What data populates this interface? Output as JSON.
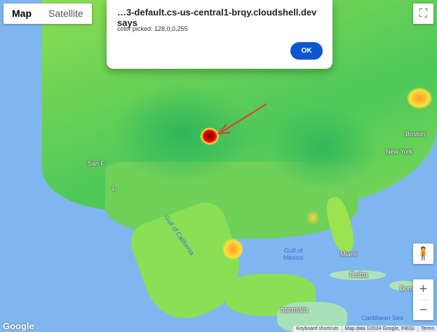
{
  "map": {
    "type_buttons": [
      "Map",
      "Satellite"
    ],
    "active_type": "Map",
    "labels": {
      "san_francisco": "San F",
      "los_angeles": "L",
      "boston": "Boston",
      "new_york": "New York",
      "gulf_of_california": "Gulf of California",
      "gulf_of_mexico": "Gulf of\nMexico",
      "miami": "Miami",
      "cuba": "Cuba",
      "dominican": "Domin",
      "caribbean": "Caribbean Sea",
      "guatemala": "atemala"
    },
    "zoom_in": "+",
    "zoom_out": "−",
    "logo": "Google",
    "footer": {
      "shortcuts": "Keyboard shortcuts",
      "map_data": "Map data ©2024 Google, INEGI",
      "terms": "Terms"
    },
    "icons": [
      "fullscreen-icon",
      "pegman-icon",
      "arrow-annotation"
    ],
    "colors": {
      "land": "#7ed957",
      "water": "#7fb6f0",
      "hotspot": "#cc0000",
      "arrow": "#e53935"
    }
  },
  "dialog": {
    "title": "…3-default.cs-us-central1-brqy.cloudshell.dev says",
    "message": "color picked: 128,0,0,255",
    "ok": "OK"
  }
}
